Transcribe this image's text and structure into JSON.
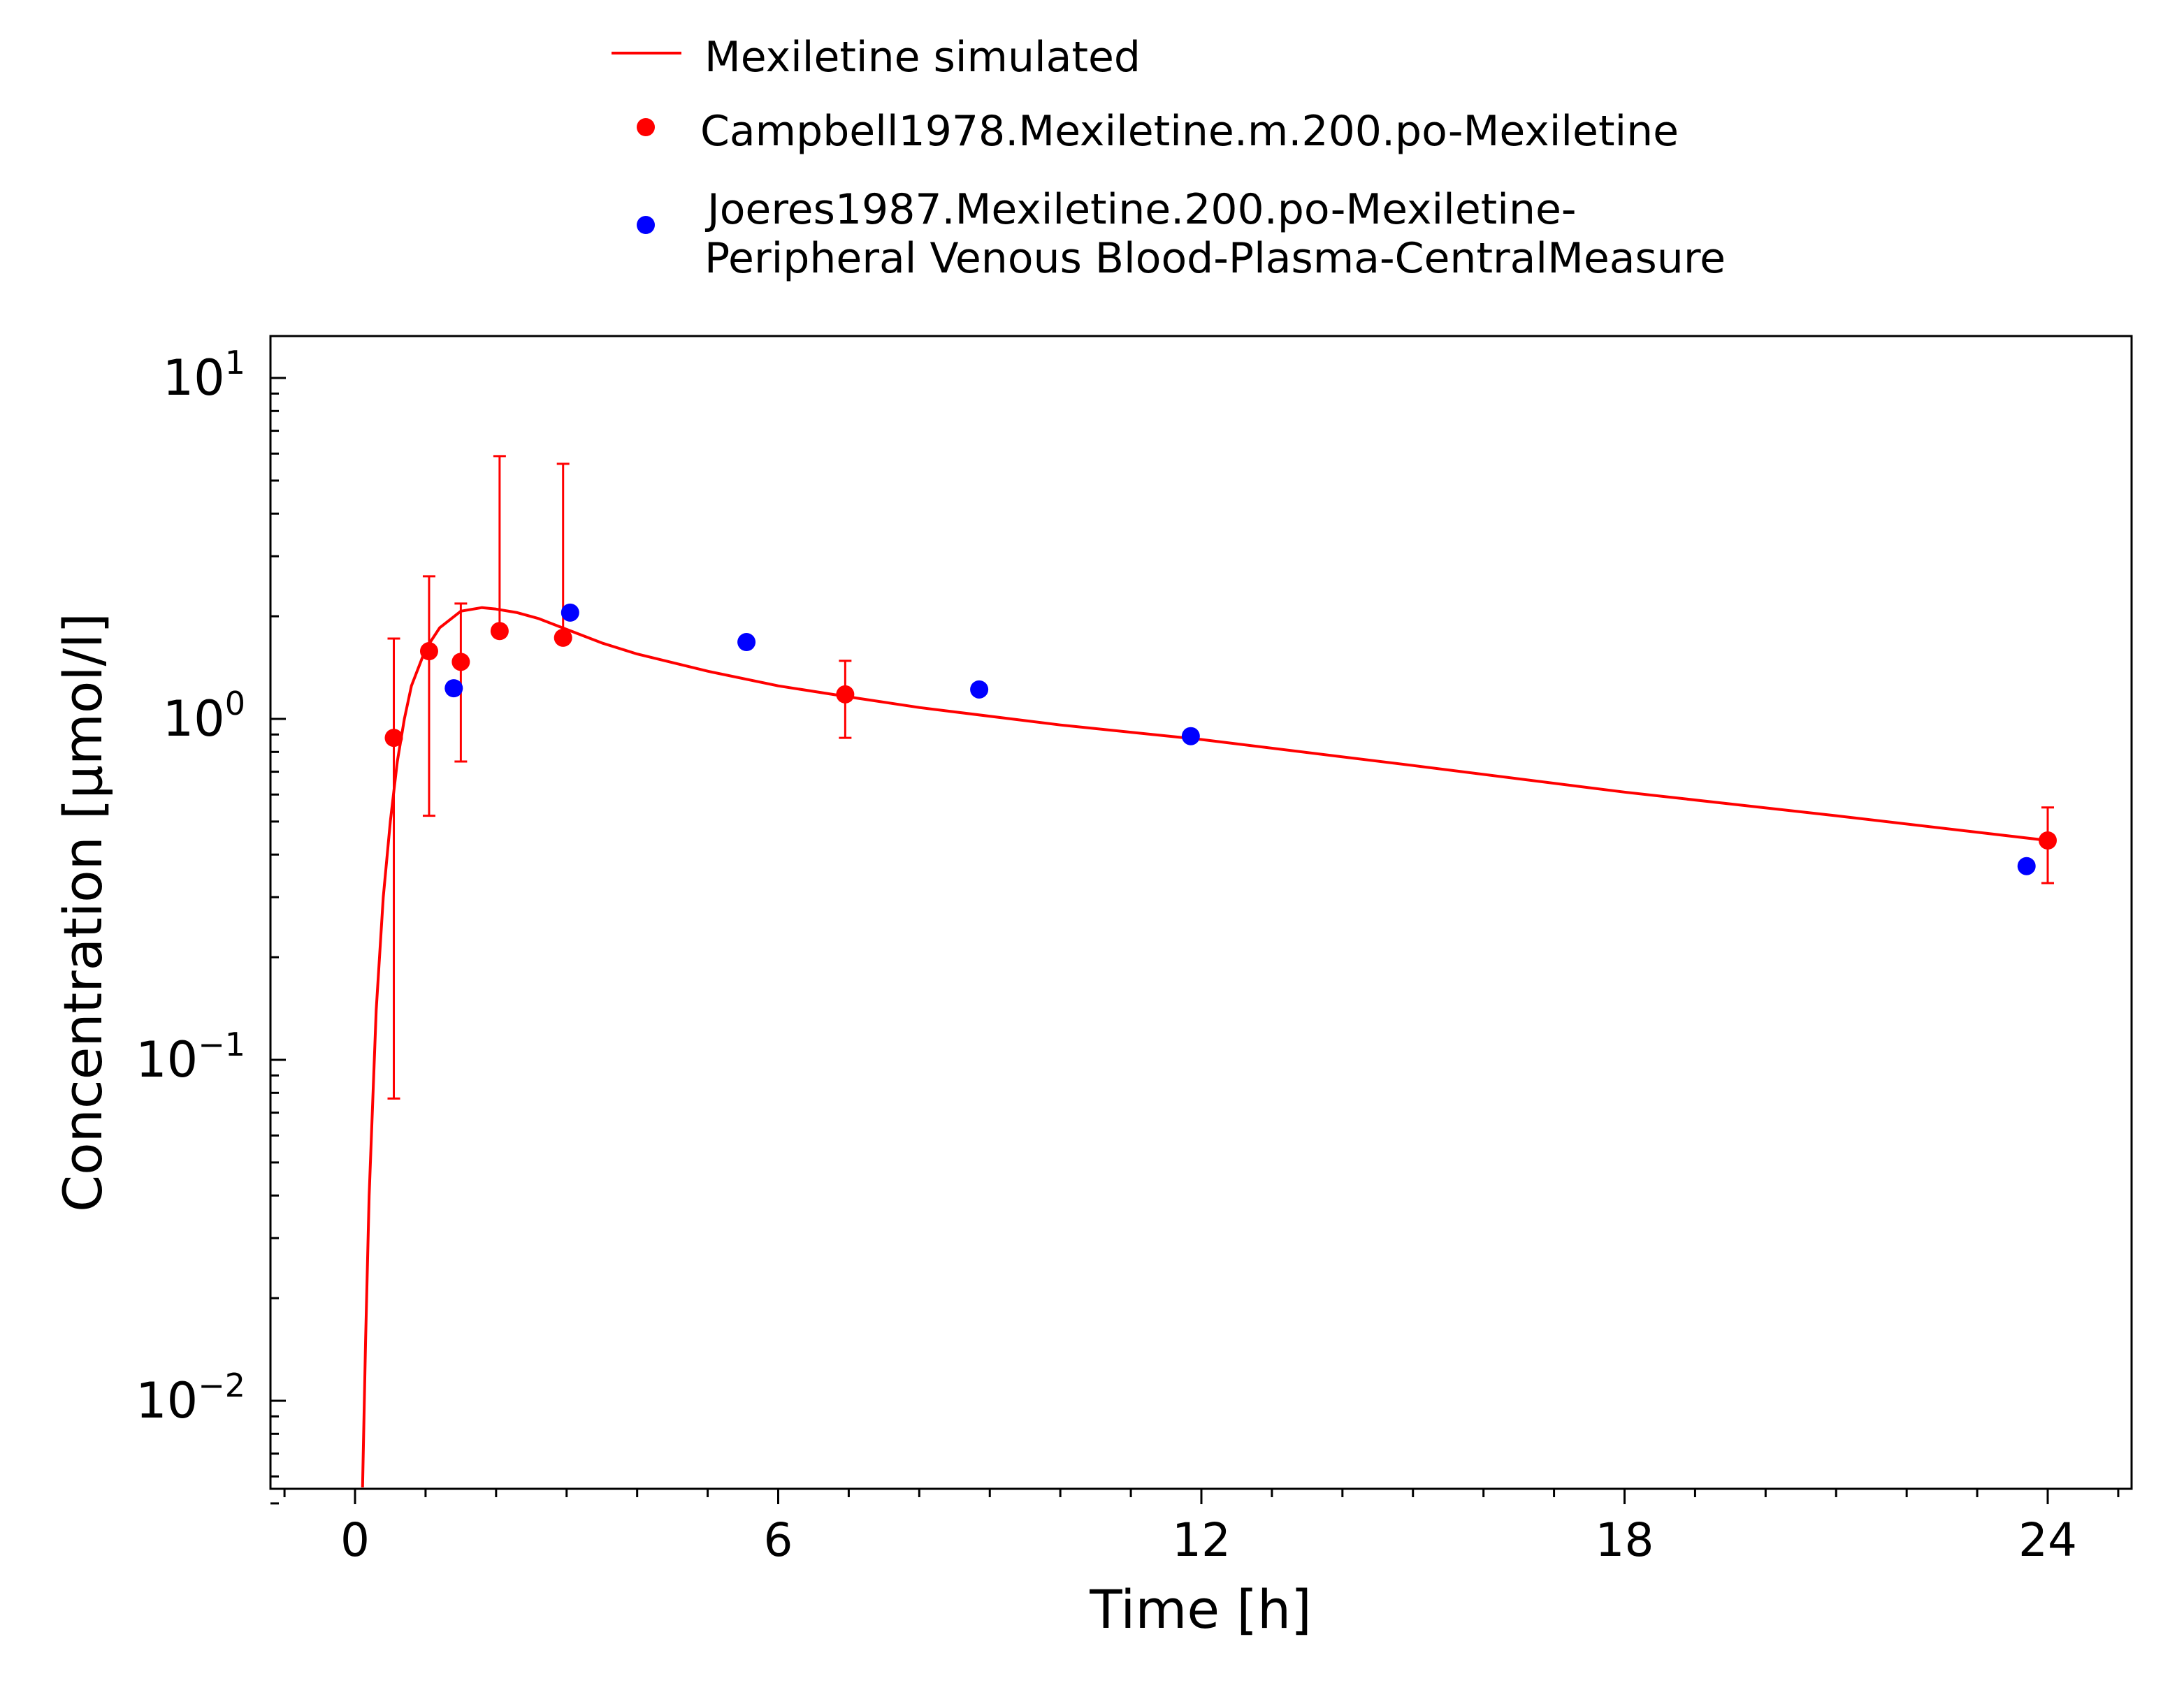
{
  "chart_data": {
    "type": "scatter",
    "title": "",
    "xlabel": "Time [h]",
    "ylabel": "Concentration [µmol/l]",
    "xlim": [
      -1.2,
      25.2
    ],
    "ylim": [
      0.005,
      12
    ],
    "y_scale": "log",
    "x_ticks": [
      0,
      6,
      12,
      18,
      24
    ],
    "x_tick_labels": [
      "0",
      "6",
      "12",
      "18",
      "24"
    ],
    "y_ticks": [
      0.01,
      0.1,
      1,
      10
    ],
    "y_tick_labels": [
      {
        "base": "10",
        "exp": "−2"
      },
      {
        "base": "10",
        "exp": "−1"
      },
      {
        "base": "10",
        "exp": "0"
      },
      {
        "base": "10",
        "exp": "1"
      }
    ],
    "grid": false,
    "legend_position": "top",
    "series": [
      {
        "name": "Mexiletine simulated",
        "kind": "line",
        "color": "#ff0000",
        "x": [
          0.1,
          0.15,
          0.2,
          0.3,
          0.4,
          0.5,
          0.6,
          0.7,
          0.8,
          1.0,
          1.2,
          1.5,
          1.8,
          2.0,
          2.3,
          2.6,
          3.0,
          3.5,
          4.0,
          5.0,
          6.0,
          7.0,
          8.0,
          10.0,
          12.0,
          15.0,
          18.0,
          21.0,
          24.0
        ],
        "y": [
          0.0048,
          0.015,
          0.04,
          0.14,
          0.3,
          0.5,
          0.75,
          1.0,
          1.25,
          1.6,
          1.85,
          2.07,
          2.12,
          2.1,
          2.05,
          1.97,
          1.83,
          1.67,
          1.55,
          1.38,
          1.25,
          1.16,
          1.08,
          0.96,
          0.87,
          0.73,
          0.61,
          0.52,
          0.44
        ]
      },
      {
        "name": "Campbell1978.Mexiletine.m.200.po-Mexiletine",
        "kind": "points",
        "color": "#ff0000",
        "x": [
          0.55,
          1.05,
          1.5,
          2.05,
          2.95,
          6.95,
          24.0
        ],
        "y": [
          0.88,
          1.58,
          1.47,
          1.81,
          1.73,
          1.18,
          0.44
        ],
        "err_low": [
          0.077,
          0.52,
          0.75,
          null,
          null,
          0.88,
          0.33
        ],
        "err_high": [
          1.72,
          2.62,
          2.18,
          5.9,
          5.6,
          1.48,
          0.55
        ]
      },
      {
        "name": "Joeres1987.Mexiletine.200.po-Mexiletine-",
        "name_line2": "Peripheral Venous Blood-Plasma-CentralMeasure",
        "kind": "points",
        "color": "#0000ff",
        "x": [
          1.4,
          3.05,
          5.55,
          8.85,
          11.85,
          23.7
        ],
        "y": [
          1.23,
          2.05,
          1.68,
          1.22,
          0.89,
          0.37
        ]
      }
    ]
  }
}
